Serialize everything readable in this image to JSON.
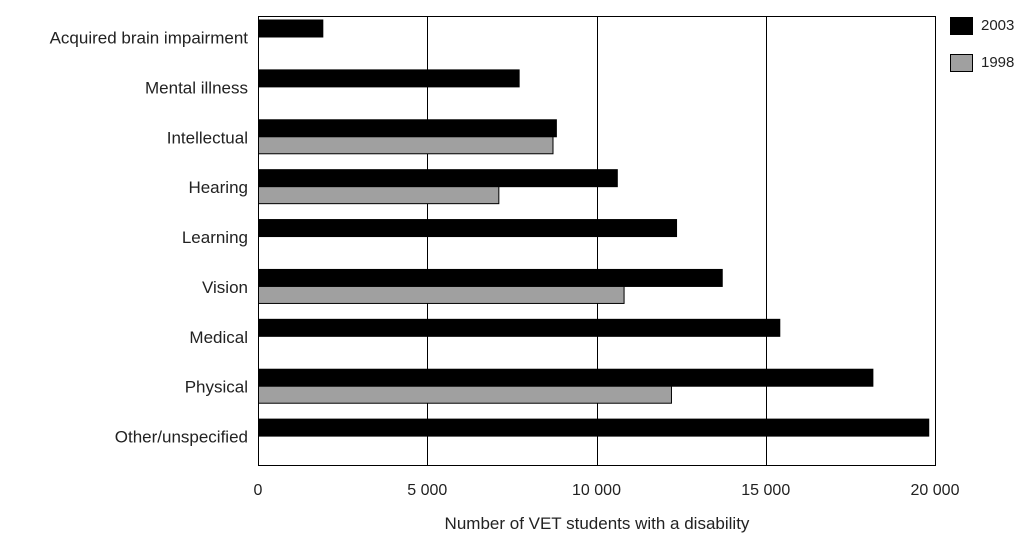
{
  "chart_data": {
    "type": "bar",
    "orientation": "horizontal",
    "title": "",
    "xlabel": "Number of VET students with a disability",
    "ylabel": "",
    "xlim": [
      0,
      20000
    ],
    "xticks": [
      0,
      5000,
      10000,
      15000,
      20000
    ],
    "xtick_labels": [
      "0",
      "5 000",
      "10 000",
      "15 000",
      "20 000"
    ],
    "grid": "vertical",
    "legend_position": "top-right",
    "categories": [
      "Acquired brain impairment",
      "Mental illness",
      "Intellectual",
      "Hearing",
      "Learning",
      "Vision",
      "Medical",
      "Physical",
      "Other/unspecified"
    ],
    "series": [
      {
        "name": "2003",
        "color": "#000000",
        "values": [
          1900,
          7700,
          8800,
          10600,
          12350,
          13700,
          15400,
          18150,
          19800
        ]
      },
      {
        "name": "1998",
        "color": "#a0a0a0",
        "values": [
          null,
          null,
          8700,
          7100,
          null,
          10800,
          null,
          12200,
          null
        ]
      }
    ]
  }
}
